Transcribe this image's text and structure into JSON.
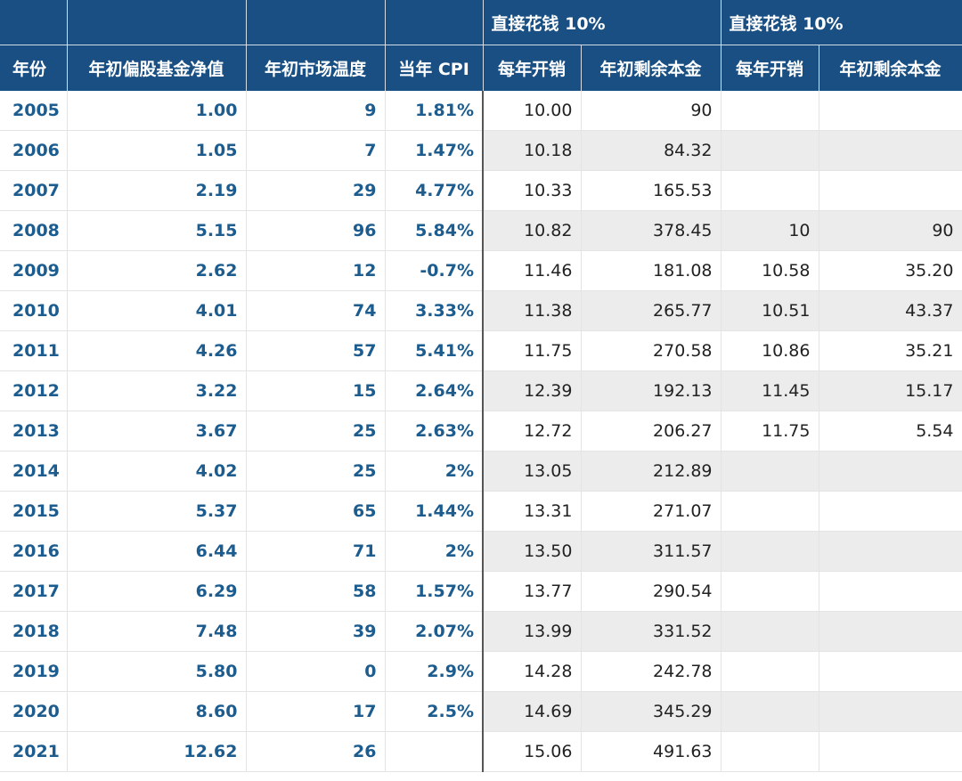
{
  "header": {
    "group1": "直接花钱 10%",
    "group2": "直接花钱 10%",
    "columns": [
      "年份",
      "年初偏股基金净值",
      "年初市场温度",
      "当年 CPI",
      "每年开销",
      "年初剩余本金",
      "每年开销",
      "年初剩余本金"
    ]
  },
  "rows": [
    [
      "2005",
      "1.00",
      "9",
      "1.81%",
      "10.00",
      "90",
      "",
      ""
    ],
    [
      "2006",
      "1.05",
      "7",
      "1.47%",
      "10.18",
      "84.32",
      "",
      ""
    ],
    [
      "2007",
      "2.19",
      "29",
      "4.77%",
      "10.33",
      "165.53",
      "",
      ""
    ],
    [
      "2008",
      "5.15",
      "96",
      "5.84%",
      "10.82",
      "378.45",
      "10",
      "90"
    ],
    [
      "2009",
      "2.62",
      "12",
      "-0.7%",
      "11.46",
      "181.08",
      "10.58",
      "35.20"
    ],
    [
      "2010",
      "4.01",
      "74",
      "3.33%",
      "11.38",
      "265.77",
      "10.51",
      "43.37"
    ],
    [
      "2011",
      "4.26",
      "57",
      "5.41%",
      "11.75",
      "270.58",
      "10.86",
      "35.21"
    ],
    [
      "2012",
      "3.22",
      "15",
      "2.64%",
      "12.39",
      "192.13",
      "11.45",
      "15.17"
    ],
    [
      "2013",
      "3.67",
      "25",
      "2.63%",
      "12.72",
      "206.27",
      "11.75",
      "5.54"
    ],
    [
      "2014",
      "4.02",
      "25",
      "2%",
      "13.05",
      "212.89",
      "",
      ""
    ],
    [
      "2015",
      "5.37",
      "65",
      "1.44%",
      "13.31",
      "271.07",
      "",
      ""
    ],
    [
      "2016",
      "6.44",
      "71",
      "2%",
      "13.50",
      "311.57",
      "",
      ""
    ],
    [
      "2017",
      "6.29",
      "58",
      "1.57%",
      "13.77",
      "290.54",
      "",
      ""
    ],
    [
      "2018",
      "7.48",
      "39",
      "2.07%",
      "13.99",
      "331.52",
      "",
      ""
    ],
    [
      "2019",
      "5.80",
      "0",
      "2.9%",
      "14.28",
      "242.78",
      "",
      ""
    ],
    [
      "2020",
      "8.60",
      "17",
      "2.5%",
      "14.69",
      "345.29",
      "",
      ""
    ],
    [
      "2021",
      "12.62",
      "26",
      "",
      "15.06",
      "491.63",
      "",
      ""
    ]
  ]
}
